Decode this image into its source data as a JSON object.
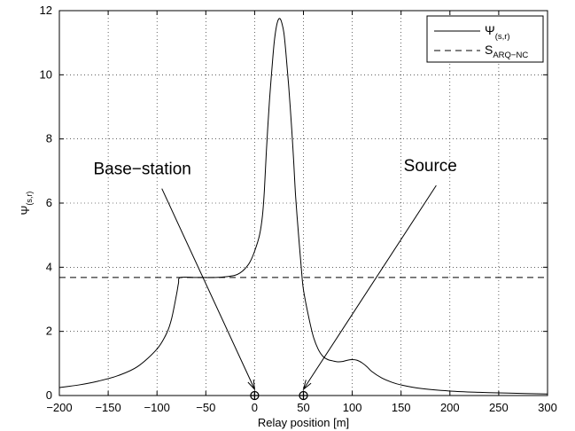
{
  "chart_data": {
    "type": "line",
    "xlabel": "Relay position [m]",
    "ylabel": "Ψ",
    "ylabel_sub": "(s,r)",
    "xlim": [
      -200,
      300
    ],
    "ylim": [
      0,
      12
    ],
    "xticks": [
      -200,
      -150,
      -100,
      -50,
      0,
      50,
      100,
      150,
      200,
      250,
      300
    ],
    "yticks": [
      0,
      2,
      4,
      6,
      8,
      10,
      12
    ],
    "grid": true,
    "legend_position": "top-right",
    "series": [
      {
        "name": "Ψ",
        "name_sub": "(s,r)",
        "style": "solid",
        "x": [
          -200,
          -180,
          -160,
          -140,
          -120,
          -100,
          -90,
          -85,
          -80,
          -78,
          -76,
          -60,
          -40,
          -30,
          -20,
          -15,
          -10,
          -5,
          0,
          5,
          8,
          10,
          12,
          15,
          18,
          20,
          22,
          24,
          26,
          28,
          30,
          32,
          35,
          38,
          40,
          42,
          45,
          48,
          50,
          55,
          60,
          65,
          70,
          75,
          80,
          85,
          90,
          95,
          100,
          105,
          110,
          115,
          120,
          130,
          140,
          150,
          170,
          200,
          230,
          260,
          300
        ],
        "y": [
          0.25,
          0.33,
          0.45,
          0.62,
          0.9,
          1.45,
          1.95,
          2.4,
          3.15,
          3.5,
          3.68,
          3.68,
          3.68,
          3.7,
          3.75,
          3.82,
          3.95,
          4.15,
          4.5,
          5.0,
          5.6,
          6.4,
          7.6,
          9.1,
          10.3,
          11.0,
          11.45,
          11.7,
          11.75,
          11.6,
          11.3,
          10.7,
          9.6,
          8.3,
          7.3,
          6.2,
          5.0,
          3.9,
          3.3,
          2.5,
          1.85,
          1.45,
          1.22,
          1.12,
          1.08,
          1.05,
          1.06,
          1.1,
          1.12,
          1.1,
          1.02,
          0.9,
          0.75,
          0.55,
          0.42,
          0.33,
          0.22,
          0.14,
          0.1,
          0.075,
          0.05
        ]
      },
      {
        "name": "S",
        "name_sub": "ARQ−NC",
        "style": "dashed",
        "x": [
          -200,
          300
        ],
        "y": [
          3.68,
          3.68
        ]
      }
    ],
    "markers": [
      {
        "x": 0,
        "y": 0
      },
      {
        "x": 50,
        "y": 0
      }
    ],
    "annotations": [
      {
        "text": "Base−station",
        "label_x": -115,
        "label_y": 6.9,
        "arrow_from": [
          -95,
          6.45
        ],
        "arrow_to": [
          0,
          0
        ]
      },
      {
        "text": "Source",
        "label_x": 180,
        "label_y": 7.0,
        "arrow_from": [
          186,
          6.55
        ],
        "arrow_to": [
          50,
          0
        ]
      }
    ]
  }
}
